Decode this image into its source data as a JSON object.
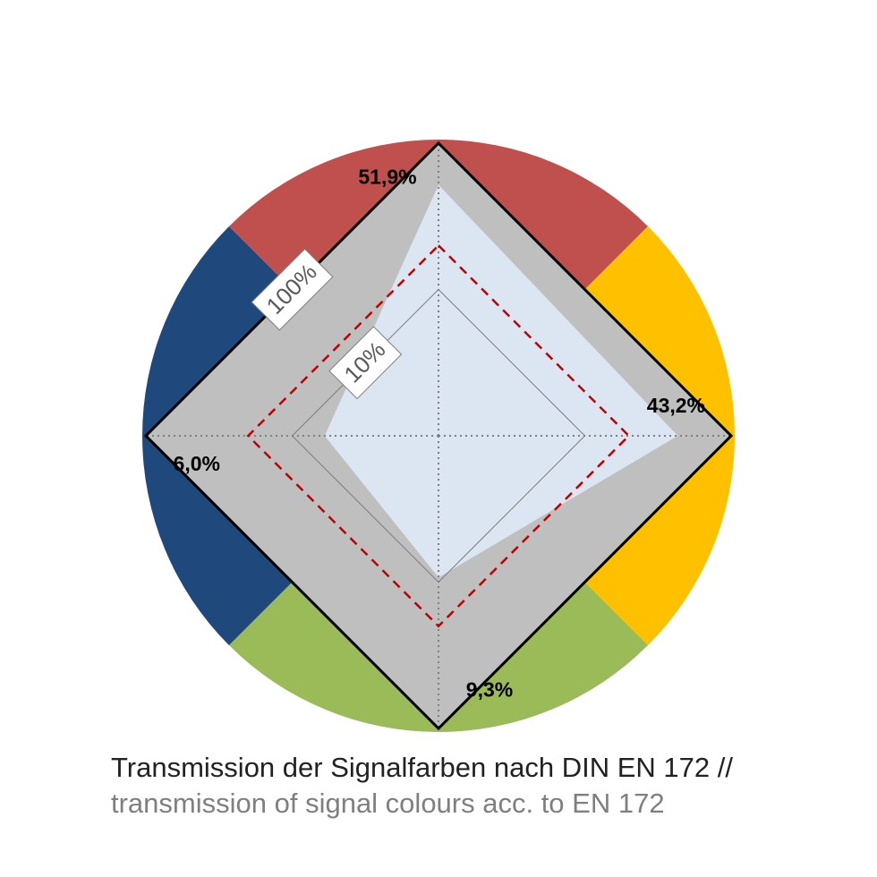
{
  "chart_data": {
    "type": "radar",
    "title": "Transmission der Signalfarben nach DIN EN 172 //",
    "subtitle": "transmission of signal colours acc. to EN 172",
    "categories": [
      null,
      null,
      null,
      null
    ],
    "category_colors": [
      "#c0504d",
      "#ffc000",
      "#9bbb59",
      "#1f497d"
    ],
    "series": [
      {
        "color": "#dce6f2",
        "values": [
          51.9,
          43.2,
          9.3,
          6.0
        ],
        "value_labels": [
          "51,9%",
          "43,2%",
          "9,3%",
          "6,0%"
        ]
      }
    ],
    "rlim": [
      1,
      100
    ],
    "rticks": [
      {
        "value": 10,
        "label": "10%"
      },
      {
        "value": 100,
        "label": "100%"
      }
    ],
    "log_scale": true,
    "reference": {
      "value": 20,
      "color": "#c00000"
    }
  }
}
